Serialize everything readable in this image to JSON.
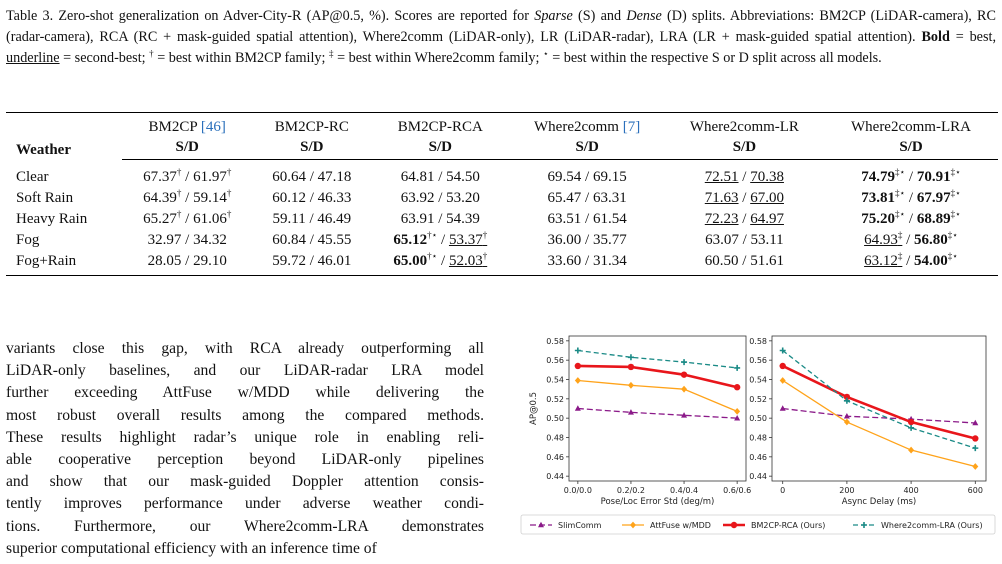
{
  "caption": {
    "part1": "Table 3. Zero-shot generalization on Adver-City-R (AP@0.5, %). Scores are reported for ",
    "sparse": "Sparse",
    "part2": " (S) and ",
    "dense": "Dense",
    "part3": " (D) splits. Abbreviations: BM2CP (LiDAR-camera), RC (radar-camera), RCA (RC + mask-guided spatial attention), Where2comm (LiDAR-only), LR (LiDAR-radar), LRA (LR + mask-guided spatial attention). ",
    "bold_label": "Bold",
    "part4": " = best, ",
    "underline_label": "underline",
    "part5": " = second-best; ",
    "dagger_sym": "†",
    "part6": " = best within BM2CP family; ",
    "ddagger_sym": "‡",
    "part7": " = best within Where2comm family; ",
    "star_sym": "⋆",
    "part8": " = best within the respective S or D split across all models."
  },
  "table": {
    "row_header": "Weather",
    "split_label": "S/D",
    "columns": [
      {
        "name": "BM2CP ",
        "ref": "[46]"
      },
      {
        "name": "BM2CP-RC",
        "ref": ""
      },
      {
        "name": "BM2CP-RCA",
        "ref": ""
      },
      {
        "name": "Where2comm ",
        "ref": "[7]"
      },
      {
        "name": "Where2comm-LR",
        "ref": ""
      },
      {
        "name": "Where2comm-LRA",
        "ref": ""
      }
    ],
    "rows": [
      {
        "weather": "Clear",
        "cells": [
          {
            "s": "67.37",
            "s_sup": "†",
            "d": "61.97",
            "d_sup": "†"
          },
          {
            "s": "60.64",
            "d": "47.18"
          },
          {
            "s": "64.81",
            "d": "54.50"
          },
          {
            "s": "69.54",
            "d": "69.15"
          },
          {
            "s": "72.51",
            "d": "70.38",
            "s_u": true,
            "d_u": true
          },
          {
            "s": "74.79",
            "s_sup": "‡⋆",
            "d": "70.91",
            "d_sup": "‡⋆",
            "s_b": true,
            "d_b": true
          }
        ]
      },
      {
        "weather": "Soft Rain",
        "cells": [
          {
            "s": "64.39",
            "s_sup": "†",
            "d": "59.14",
            "d_sup": "†"
          },
          {
            "s": "60.12",
            "d": "46.33"
          },
          {
            "s": "63.92",
            "d": "53.20"
          },
          {
            "s": "65.47",
            "d": "63.31"
          },
          {
            "s": "71.63",
            "d": "67.00",
            "s_u": true,
            "d_u": true
          },
          {
            "s": "73.81",
            "s_sup": "‡⋆",
            "d": "67.97",
            "d_sup": "‡⋆",
            "s_b": true,
            "d_b": true
          }
        ]
      },
      {
        "weather": "Heavy Rain",
        "cells": [
          {
            "s": "65.27",
            "s_sup": "†",
            "d": "61.06",
            "d_sup": "†"
          },
          {
            "s": "59.11",
            "d": "46.49"
          },
          {
            "s": "63.91",
            "d": "54.39"
          },
          {
            "s": "63.51",
            "d": "61.54"
          },
          {
            "s": "72.23",
            "d": "64.97",
            "s_u": true,
            "d_u": true
          },
          {
            "s": "75.20",
            "s_sup": "‡⋆",
            "d": "68.89",
            "d_sup": "‡⋆",
            "s_b": true,
            "d_b": true
          }
        ]
      },
      {
        "weather": "Fog",
        "cells": [
          {
            "s": "32.97",
            "d": "34.32"
          },
          {
            "s": "60.84",
            "d": "45.55"
          },
          {
            "s": "65.12",
            "s_sup": "†⋆",
            "d": "53.37",
            "d_sup": "†",
            "s_b": true,
            "d_u": true
          },
          {
            "s": "36.00",
            "d": "35.77"
          },
          {
            "s": "63.07",
            "d": "53.11"
          },
          {
            "s": "64.93",
            "s_sup": "‡",
            "d": "56.80",
            "d_sup": "‡⋆",
            "s_u": true,
            "d_b": true
          }
        ]
      },
      {
        "weather": "Fog+Rain",
        "cells": [
          {
            "s": "28.05",
            "d": "29.10"
          },
          {
            "s": "59.72",
            "d": "46.01"
          },
          {
            "s": "65.00",
            "s_sup": "†⋆",
            "d": "52.03",
            "d_sup": "†",
            "s_b": true,
            "d_u": true
          },
          {
            "s": "33.60",
            "d": "31.34"
          },
          {
            "s": "60.50",
            "d": "51.61"
          },
          {
            "s": "63.12",
            "s_sup": "‡",
            "d": "54.00",
            "d_sup": "‡⋆",
            "s_u": true,
            "d_b": true
          }
        ]
      }
    ]
  },
  "body_lines": [
    "variants close this gap, with RCA already outperforming all",
    "LiDAR-only baselines, and our LiDAR-radar LRA model",
    "further exceeding AttFuse w/MDD while delivering the",
    "most robust overall results among the compared methods.",
    "These results highlight radar’s unique role in enabling reli-",
    "able cooperative perception beyond LiDAR-only pipelines",
    "and show that our mask-guided Doppler attention consis-",
    "tently improves performance under adverse weather condi-",
    "tions. Furthermore, our Where2comm-LRA demonstrates",
    "superior computational efficiency with an inference time of"
  ],
  "chart_data": [
    {
      "type": "line",
      "xlabel": "Pose/Loc Error Std (deg/m)",
      "ylabel": "AP@0.5",
      "categories": [
        "0.0/0.0",
        "0.2/0.2",
        "0.4/0.4",
        "0.6/0.6"
      ],
      "ylim": [
        0.435,
        0.585
      ],
      "yticks": [
        "0.44",
        "0.46",
        "0.48",
        "0.50",
        "0.52",
        "0.54",
        "0.56",
        "0.58"
      ],
      "series": [
        {
          "name": "SlimComm",
          "values": [
            0.51,
            0.506,
            0.503,
            0.5
          ]
        },
        {
          "name": "AttFuse w/MDD",
          "values": [
            0.539,
            0.534,
            0.53,
            0.507
          ]
        },
        {
          "name": "BM2CP-RCA (Ours)",
          "values": [
            0.554,
            0.553,
            0.545,
            0.532
          ]
        },
        {
          "name": "Where2comm-LRA (Ours)",
          "values": [
            0.57,
            0.563,
            0.558,
            0.552
          ]
        }
      ]
    },
    {
      "type": "line",
      "xlabel": "Async Delay (ms)",
      "ylabel": "",
      "x": [
        0,
        200,
        400,
        600
      ],
      "xticks": [
        "0",
        "200",
        "400",
        "600"
      ],
      "ylim": [
        0.435,
        0.585
      ],
      "yticks": [
        "0.44",
        "0.46",
        "0.48",
        "0.50",
        "0.52",
        "0.54",
        "0.56",
        "0.58"
      ],
      "series": [
        {
          "name": "SlimComm",
          "values": [
            0.51,
            0.502,
            0.499,
            0.495
          ]
        },
        {
          "name": "AttFuse w/MDD",
          "values": [
            0.539,
            0.496,
            0.467,
            0.45
          ]
        },
        {
          "name": "BM2CP-RCA (Ours)",
          "values": [
            0.554,
            0.522,
            0.496,
            0.479
          ]
        },
        {
          "name": "Where2comm-LRA (Ours)",
          "values": [
            0.57,
            0.518,
            0.49,
            0.469
          ]
        }
      ]
    }
  ],
  "legend": [
    "SlimComm",
    "AttFuse w/MDD",
    "BM2CP-RCA (Ours)",
    "Where2comm-LRA (Ours)"
  ],
  "series_colors": [
    "#8b1a89",
    "#ffa31a",
    "#e8161b",
    "#1a8a86"
  ]
}
